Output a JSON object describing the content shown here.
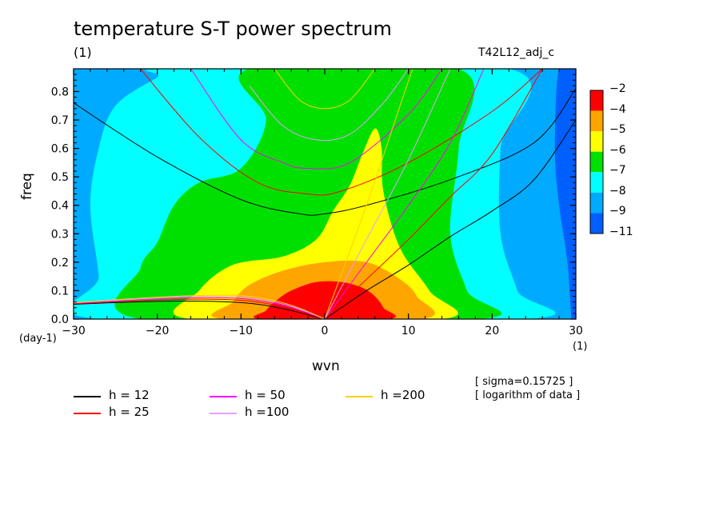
{
  "title": "temperature S-T power spectrum",
  "subtitle_left": "(1)",
  "subtitle_right": "T42L12_adj_c",
  "info_lines": [
    "[ sigma=0.15725 ]",
    "[ logarithm of data ]"
  ],
  "chart_data": {
    "type": "heatmap",
    "xlabel": "wvn",
    "ylabel": "freq",
    "x_unit": "(1)",
    "y_unit": "(day-1)",
    "xlim": [
      -30,
      30
    ],
    "ylim": [
      0,
      0.88
    ],
    "x_ticks": [
      -30,
      -20,
      -10,
      0,
      10,
      20,
      30
    ],
    "x_tick_labels": [
      "−30",
      "−20",
      "−10",
      "0",
      "10",
      "20",
      "30"
    ],
    "y_ticks": [
      0,
      0.1,
      0.2,
      0.3,
      0.4,
      0.5,
      0.6,
      0.7,
      0.8
    ],
    "y_tick_labels": [
      "0.0",
      "0.1",
      "0.2",
      "0.3",
      "0.4",
      "0.5",
      "0.6",
      "0.7",
      "0.8"
    ],
    "colorbar": {
      "labels": [
        "−2",
        "−4",
        "−5",
        "−6",
        "−7",
        "−8",
        "−9",
        "−11"
      ],
      "colors": [
        "#ff0000",
        "#ffa500",
        "#ffff00",
        "#00e000",
        "#00ffff",
        "#00aaff",
        "#0060ff"
      ]
    },
    "contour_regions": [
      {
        "level": "−4 to −2",
        "color": "#ff0000",
        "outline": [
          [
            -7.5,
            0
          ],
          [
            -7,
            0.03
          ],
          [
            -6,
            0.06
          ],
          [
            -4,
            0.1
          ],
          [
            -1,
            0.13
          ],
          [
            2,
            0.13
          ],
          [
            4.5,
            0.11
          ],
          [
            6,
            0.08
          ],
          [
            7,
            0.04
          ],
          [
            7.5,
            0
          ]
        ]
      },
      {
        "level": "−5 to −4",
        "color": "#ffa500",
        "outline": [
          [
            -12,
            0
          ],
          [
            -11,
            0.06
          ],
          [
            -9,
            0.12
          ],
          [
            -5,
            0.17
          ],
          [
            0,
            0.2
          ],
          [
            5,
            0.2
          ],
          [
            9,
            0.14
          ],
          [
            11,
            0.08
          ],
          [
            11.5,
            0
          ]
        ]
      },
      {
        "level": "−6 to −5",
        "color": "#ffff00",
        "outline": [
          [
            -16,
            0
          ],
          [
            -15,
            0.1
          ],
          [
            -11,
            0.19
          ],
          [
            -5,
            0.22
          ],
          [
            -1,
            0.28
          ],
          [
            1,
            0.38
          ],
          [
            3,
            0.47
          ],
          [
            4.5,
            0.58
          ],
          [
            6,
            0.67
          ],
          [
            6.8,
            0.6
          ],
          [
            7,
            0.45
          ],
          [
            9,
            0.25
          ],
          [
            12.5,
            0.1
          ],
          [
            14,
            0
          ]
        ]
      },
      {
        "level": "−7 to −6",
        "color": "#00e000",
        "outline": [
          [
            -22,
            0
          ],
          [
            -22,
            0.18
          ],
          [
            -20,
            0.27
          ],
          [
            -18,
            0.4
          ],
          [
            -15,
            0.48
          ],
          [
            -10,
            0.53
          ],
          [
            -7,
            0.7
          ],
          [
            -9,
            0.88
          ],
          [
            16,
            0.88
          ],
          [
            16,
            0.6
          ],
          [
            15,
            0.3
          ],
          [
            17,
            0.1
          ],
          [
            18.5,
            0
          ]
        ]
      },
      {
        "level": "−8 to −7",
        "color": "#00ffff",
        "outline": [
          [
            -27,
            0
          ],
          [
            -27,
            0.15
          ],
          [
            -28,
            0.4
          ],
          [
            -27,
            0.6
          ],
          [
            -25,
            0.75
          ],
          [
            -20,
            0.85
          ],
          [
            -18,
            0.88
          ],
          [
            22,
            0.88
          ],
          [
            21,
            0.6
          ],
          [
            21,
            0.3
          ],
          [
            23,
            0.1
          ],
          [
            24,
            0
          ]
        ]
      },
      {
        "level": "−9 to −8",
        "color": "#00aaff",
        "outline": [
          [
            -30,
            0
          ],
          [
            -30,
            0.88
          ],
          [
            29,
            0.88
          ],
          [
            28,
            0.5
          ],
          [
            27.5,
            0.25
          ],
          [
            28.5,
            0.1
          ],
          [
            29,
            0
          ]
        ]
      },
      {
        "level": "−11 to −9",
        "color": "#0060ff",
        "outline": [
          [
            30,
            0
          ],
          [
            30,
            0.88
          ],
          [
            28,
            0.88
          ],
          [
            27.5,
            0.6
          ],
          [
            28,
            0.4
          ],
          [
            29,
            0.2
          ],
          [
            29.5,
            0
          ]
        ]
      }
    ],
    "legend": [
      {
        "label": "h = 12",
        "color": "#000000"
      },
      {
        "label": "h = 25",
        "color": "#ff0000"
      },
      {
        "label": "h = 50",
        "color": "#ff00ff"
      },
      {
        "label": "h =100",
        "color": "#e0a0ff"
      },
      {
        "label": "h =200",
        "color": "#ffd000"
      }
    ],
    "series": [
      {
        "name": "h = 12",
        "color": "#000000",
        "curves": {
          "rossby": [
            [
              -30,
              0.052
            ],
            [
              -25,
              0.058
            ],
            [
              -20,
              0.062
            ],
            [
              -15,
              0.063
            ],
            [
              -10,
              0.058
            ],
            [
              -7,
              0.048
            ],
            [
              -4,
              0.03
            ],
            [
              -2,
              0.015
            ],
            [
              0,
              0
            ]
          ],
          "kelvin": [
            [
              0,
              0
            ],
            [
              5,
              0.1
            ],
            [
              10,
              0.19
            ],
            [
              15,
              0.29
            ],
            [
              20,
              0.38
            ],
            [
              25,
              0.49
            ],
            [
              30,
              0.7
            ]
          ],
          "ig": [
            [
              -30,
              0.76
            ],
            [
              -20,
              0.57
            ],
            [
              -10,
              0.42
            ],
            [
              -3,
              0.37
            ],
            [
              0,
              0.37
            ],
            [
              5,
              0.4
            ],
            [
              15,
              0.49
            ],
            [
              25,
              0.62
            ],
            [
              30,
              0.81
            ]
          ]
        }
      },
      {
        "name": "h = 25",
        "color": "#ff0000",
        "curves": {
          "rossby": [
            [
              -30,
              0.054
            ],
            [
              -25,
              0.061
            ],
            [
              -20,
              0.067
            ],
            [
              -15,
              0.07
            ],
            [
              -10,
              0.066
            ],
            [
              -6,
              0.05
            ],
            [
              -3,
              0.03
            ],
            [
              0,
              0
            ]
          ],
          "kelvin": [
            [
              0,
              0
            ],
            [
              5,
              0.14
            ],
            [
              10,
              0.28
            ],
            [
              15,
              0.43
            ],
            [
              20,
              0.58
            ],
            [
              26,
              0.88
            ]
          ],
          "ig": [
            [
              -22,
              0.88
            ],
            [
              -15,
              0.64
            ],
            [
              -8,
              0.48
            ],
            [
              -2,
              0.44
            ],
            [
              2,
              0.45
            ],
            [
              10,
              0.55
            ],
            [
              20,
              0.73
            ],
            [
              26,
              0.88
            ]
          ]
        }
      },
      {
        "name": "h = 50",
        "color": "#ff00ff",
        "curves": {
          "rossby": [
            [
              -30,
              0.056
            ],
            [
              -25,
              0.064
            ],
            [
              -20,
              0.071
            ],
            [
              -15,
              0.075
            ],
            [
              -10,
              0.072
            ],
            [
              -6,
              0.055
            ],
            [
              -3,
              0.032
            ],
            [
              0,
              0
            ]
          ],
          "kelvin": [
            [
              0,
              0
            ],
            [
              5,
              0.2
            ],
            [
              10,
              0.4
            ],
            [
              15,
              0.62
            ],
            [
              19,
              0.88
            ]
          ],
          "ig": [
            [
              -16,
              0.88
            ],
            [
              -10,
              0.63
            ],
            [
              -5,
              0.55
            ],
            [
              -2,
              0.53
            ],
            [
              3,
              0.55
            ],
            [
              10,
              0.72
            ],
            [
              14,
              0.88
            ]
          ]
        }
      },
      {
        "name": "h =100",
        "color": "#e0a0ff",
        "curves": {
          "rossby": [
            [
              -30,
              0.057
            ],
            [
              -25,
              0.066
            ],
            [
              -20,
              0.074
            ],
            [
              -15,
              0.079
            ],
            [
              -10,
              0.078
            ],
            [
              -6,
              0.06
            ],
            [
              -3,
              0.035
            ],
            [
              0,
              0
            ]
          ],
          "kelvin": [
            [
              0,
              0
            ],
            [
              5,
              0.28
            ],
            [
              10,
              0.56
            ],
            [
              15,
              0.88
            ]
          ],
          "ig": [
            [
              -9,
              0.82
            ],
            [
              -5,
              0.68
            ],
            [
              -1,
              0.63
            ],
            [
              3,
              0.65
            ],
            [
              7,
              0.76
            ],
            [
              10,
              0.88
            ]
          ]
        }
      },
      {
        "name": "h =200",
        "color": "#ffd000",
        "curves": {
          "rossby": [
            [
              -30,
              0.058
            ],
            [
              -25,
              0.068
            ],
            [
              -20,
              0.077
            ],
            [
              -15,
              0.083
            ],
            [
              -10,
              0.083
            ],
            [
              -6,
              0.065
            ],
            [
              -3,
              0.038
            ],
            [
              0,
              0
            ]
          ],
          "kelvin": [
            [
              0,
              0
            ],
            [
              5,
              0.4
            ],
            [
              9,
              0.75
            ],
            [
              10.5,
              0.88
            ]
          ],
          "ig": [
            [
              -6,
              0.88
            ],
            [
              -3,
              0.77
            ],
            [
              0,
              0.74
            ],
            [
              3,
              0.77
            ],
            [
              6,
              0.88
            ]
          ]
        }
      }
    ]
  }
}
